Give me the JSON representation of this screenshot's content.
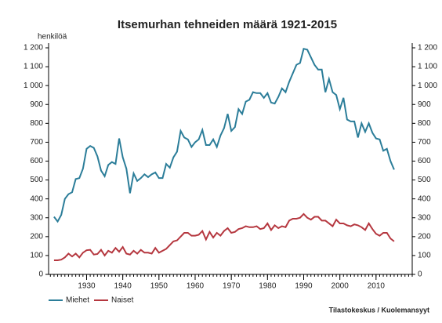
{
  "chart_data": {
    "type": "line",
    "title": "Itsemurhan tehneiden määrä 1921-2015",
    "y_label": "henkilöä",
    "source": "Tilastokeskus / Kuolemansyyt",
    "x": [
      1921,
      1922,
      1923,
      1924,
      1925,
      1926,
      1927,
      1928,
      1929,
      1930,
      1931,
      1932,
      1933,
      1934,
      1935,
      1936,
      1937,
      1938,
      1939,
      1940,
      1941,
      1942,
      1943,
      1944,
      1945,
      1946,
      1947,
      1948,
      1949,
      1950,
      1951,
      1952,
      1953,
      1954,
      1955,
      1956,
      1957,
      1958,
      1959,
      1960,
      1961,
      1962,
      1963,
      1964,
      1965,
      1966,
      1967,
      1968,
      1969,
      1970,
      1971,
      1972,
      1973,
      1974,
      1975,
      1976,
      1977,
      1978,
      1979,
      1980,
      1981,
      1982,
      1983,
      1984,
      1985,
      1986,
      1987,
      1988,
      1989,
      1990,
      1991,
      1992,
      1993,
      1994,
      1995,
      1996,
      1997,
      1998,
      1999,
      2000,
      2001,
      2002,
      2003,
      2004,
      2005,
      2006,
      2007,
      2008,
      2009,
      2010,
      2011,
      2012,
      2013,
      2014,
      2015
    ],
    "series": [
      {
        "name": "Miehet",
        "color": "#2b7d99",
        "values": [
          305,
          280,
          315,
          400,
          425,
          435,
          505,
          510,
          560,
          665,
          680,
          670,
          625,
          550,
          520,
          580,
          595,
          585,
          720,
          620,
          560,
          430,
          535,
          495,
          510,
          530,
          515,
          530,
          540,
          510,
          510,
          585,
          565,
          620,
          650,
          760,
          725,
          715,
          675,
          700,
          715,
          765,
          685,
          685,
          715,
          675,
          735,
          775,
          850,
          760,
          780,
          875,
          850,
          915,
          925,
          965,
          960,
          960,
          935,
          960,
          910,
          905,
          940,
          985,
          965,
          1020,
          1065,
          1110,
          1120,
          1195,
          1190,
          1150,
          1110,
          1085,
          1085,
          965,
          1035,
          965,
          950,
          875,
          935,
          820,
          810,
          810,
          725,
          800,
          755,
          800,
          750,
          720,
          715,
          655,
          665,
          600,
          555
        ]
      },
      {
        "name": "Naiset",
        "color": "#b5373f",
        "values": [
          75,
          75,
          78,
          90,
          110,
          95,
          110,
          90,
          115,
          128,
          130,
          105,
          108,
          130,
          100,
          125,
          115,
          140,
          120,
          145,
          110,
          105,
          125,
          110,
          130,
          115,
          115,
          110,
          140,
          115,
          125,
          135,
          155,
          175,
          180,
          200,
          220,
          220,
          205,
          205,
          210,
          230,
          185,
          225,
          195,
          220,
          205,
          230,
          245,
          220,
          225,
          240,
          245,
          255,
          250,
          250,
          255,
          240,
          245,
          270,
          235,
          260,
          245,
          255,
          250,
          285,
          295,
          295,
          300,
          320,
          300,
          290,
          305,
          305,
          285,
          285,
          270,
          255,
          290,
          270,
          270,
          260,
          255,
          265,
          260,
          250,
          235,
          270,
          240,
          215,
          205,
          220,
          220,
          190,
          175
        ]
      }
    ],
    "xlim": [
      1919.5,
      2020
    ],
    "xticks": [
      1930,
      1940,
      1950,
      1960,
      1970,
      1980,
      1990,
      2000,
      2010
    ],
    "ylim": [
      0,
      1200
    ],
    "yticks": [
      0,
      100,
      200,
      300,
      400,
      500,
      600,
      700,
      800,
      900,
      {
        "value": 1000,
        "label": "1 000"
      },
      {
        "value": 1100,
        "label": "1 100"
      },
      {
        "value": 1200,
        "label": "1 200"
      }
    ],
    "legend": "bottom-left"
  }
}
